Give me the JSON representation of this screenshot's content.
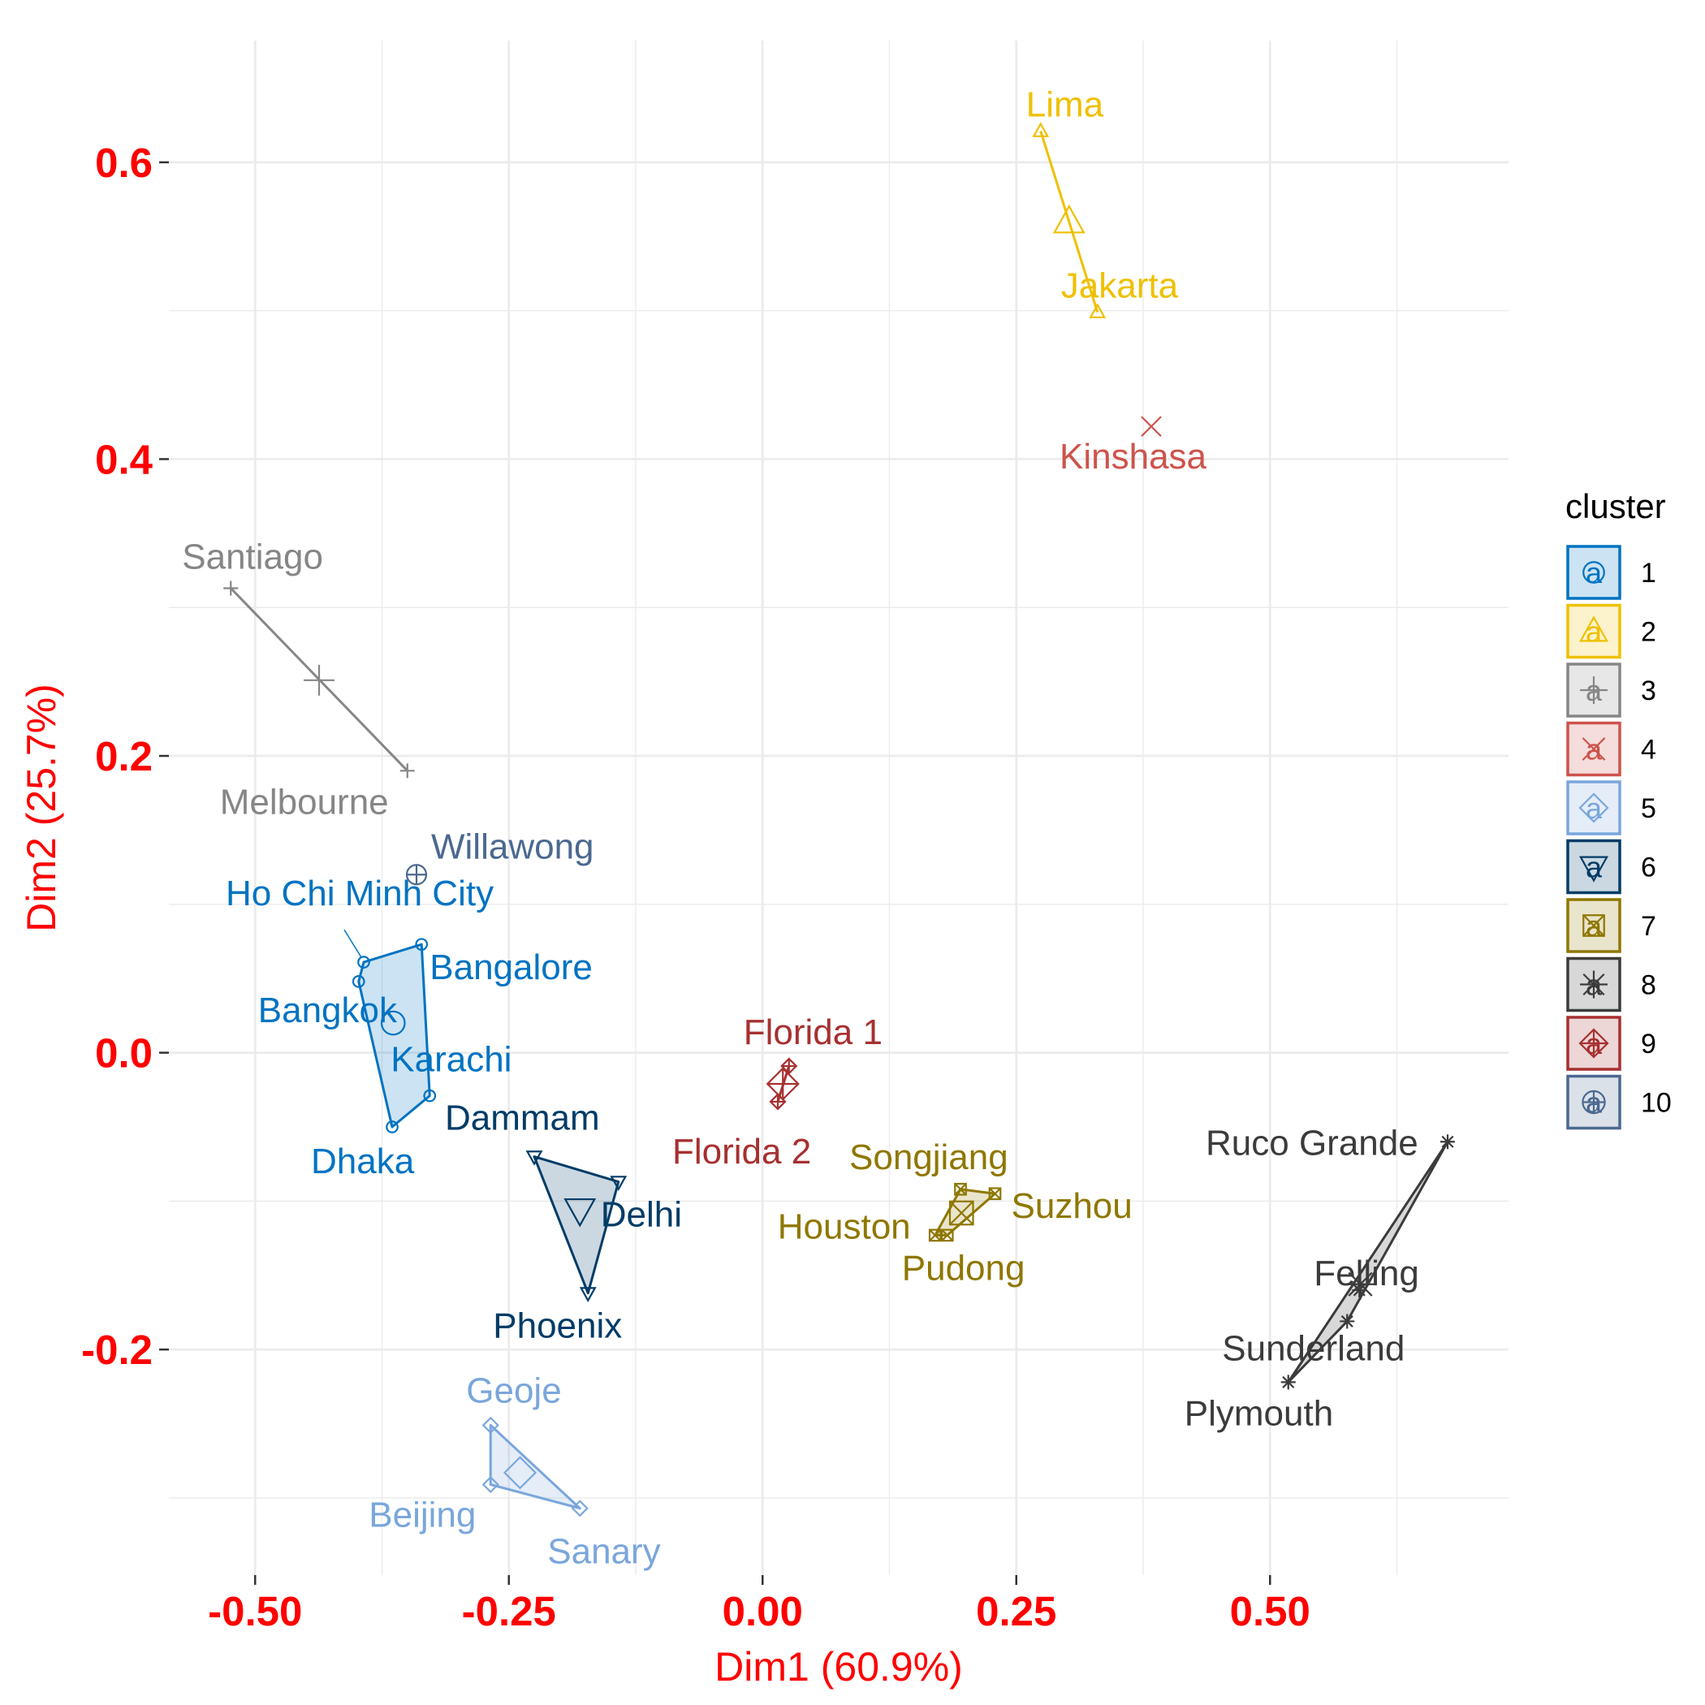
{
  "chart_data": {
    "type": "scatter",
    "title": "",
    "xlabel": "Dim1 (60.9%)",
    "ylabel": "Dim2 (25.7%)",
    "xlim": [
      -0.585,
      0.735
    ],
    "ylim": [
      -0.352,
      0.682
    ],
    "x_ticks": [
      -0.5,
      -0.25,
      0.0,
      0.25,
      0.5
    ],
    "x_tick_labels": [
      "-0.50",
      "-0.25",
      "0.00",
      "0.25",
      "0.50"
    ],
    "y_ticks": [
      -0.2,
      0.0,
      0.2,
      0.4,
      0.6
    ],
    "y_tick_labels": [
      "-0.2",
      "0.0",
      "0.2",
      "0.4",
      "0.6"
    ],
    "grid": true,
    "legend": {
      "title": "cluster",
      "position": "right"
    },
    "axis_text_color": "#FF0000",
    "clusters": [
      {
        "name": "1",
        "color": "#0073C2",
        "shape": "circle",
        "points": [
          {
            "label": "Ho Chi Minh City",
            "x": -0.393,
            "y": 0.061
          },
          {
            "label": "Bangalore",
            "x": -0.336,
            "y": 0.073
          },
          {
            "label": "Bangkok",
            "x": -0.398,
            "y": 0.048
          },
          {
            "label": "Karachi",
            "x": -0.328,
            "y": -0.029
          },
          {
            "label": "Dhaka",
            "x": -0.365,
            "y": -0.05
          }
        ],
        "centroid": {
          "x": -0.364,
          "y": 0.02
        }
      },
      {
        "name": "2",
        "color": "#EFC000",
        "shape": "triangle",
        "points": [
          {
            "label": "Lima",
            "x": 0.274,
            "y": 0.621
          },
          {
            "label": "Jakarta",
            "x": 0.33,
            "y": 0.499
          }
        ],
        "centroid": {
          "x": 0.302,
          "y": 0.56
        }
      },
      {
        "name": "3",
        "color": "#868686",
        "shape": "plus",
        "points": [
          {
            "label": "Santiago",
            "x": -0.524,
            "y": 0.313
          },
          {
            "label": "Melbourne",
            "x": -0.35,
            "y": 0.19
          }
        ],
        "centroid": {
          "x": -0.437,
          "y": 0.251
        }
      },
      {
        "name": "4",
        "color": "#CD534C",
        "shape": "cross",
        "points": [
          {
            "label": "Kinshasa",
            "x": 0.383,
            "y": 0.422
          }
        ],
        "centroid": {
          "x": 0.383,
          "y": 0.422
        }
      },
      {
        "name": "5",
        "color": "#7AA6DC",
        "shape": "diamond",
        "points": [
          {
            "label": "Geoje",
            "x": -0.268,
            "y": -0.251
          },
          {
            "label": "Beijing",
            "x": -0.268,
            "y": -0.291
          },
          {
            "label": "Sanary",
            "x": -0.18,
            "y": -0.307
          }
        ],
        "centroid": {
          "x": -0.239,
          "y": -0.283
        }
      },
      {
        "name": "6",
        "color": "#003C67",
        "shape": "triangle-down",
        "points": [
          {
            "label": "Dammam",
            "x": -0.225,
            "y": -0.07
          },
          {
            "label": "Delhi",
            "x": -0.142,
            "y": -0.087
          },
          {
            "label": "Phoenix",
            "x": -0.172,
            "y": -0.162
          }
        ],
        "centroid": {
          "x": -0.18,
          "y": -0.106
        }
      },
      {
        "name": "7",
        "color": "#8F7700",
        "shape": "square-cross",
        "points": [
          {
            "label": "Songjiang",
            "x": 0.195,
            "y": -0.092
          },
          {
            "label": "Suzhou",
            "x": 0.229,
            "y": -0.095
          },
          {
            "label": "Houston",
            "x": 0.17,
            "y": -0.123
          },
          {
            "label": "Pudong",
            "x": 0.182,
            "y": -0.123
          }
        ],
        "centroid": {
          "x": 0.196,
          "y": -0.108
        }
      },
      {
        "name": "8",
        "color": "#3B3B3B",
        "shape": "asterisk",
        "points": [
          {
            "label": "Ruco Grande",
            "x": 0.675,
            "y": -0.06
          },
          {
            "label": "Felling",
            "x": 0.588,
            "y": -0.16
          },
          {
            "label": "Sunderland",
            "x": 0.576,
            "y": -0.181
          },
          {
            "label": "Plymouth",
            "x": 0.518,
            "y": -0.222
          }
        ],
        "centroid": {
          "x": 0.589,
          "y": -0.156
        }
      },
      {
        "name": "9",
        "color": "#A73030",
        "shape": "diamond-plus",
        "points": [
          {
            "label": "Florida 1",
            "x": 0.026,
            "y": -0.009
          },
          {
            "label": "Florida 2",
            "x": 0.015,
            "y": -0.033
          }
        ],
        "centroid": {
          "x": 0.02,
          "y": -0.021
        }
      },
      {
        "name": "10",
        "color": "#4A6990",
        "shape": "circle-plus",
        "points": [
          {
            "label": "Willawong",
            "x": -0.341,
            "y": 0.12
          }
        ],
        "centroid": {
          "x": -0.341,
          "y": 0.12
        }
      }
    ]
  }
}
